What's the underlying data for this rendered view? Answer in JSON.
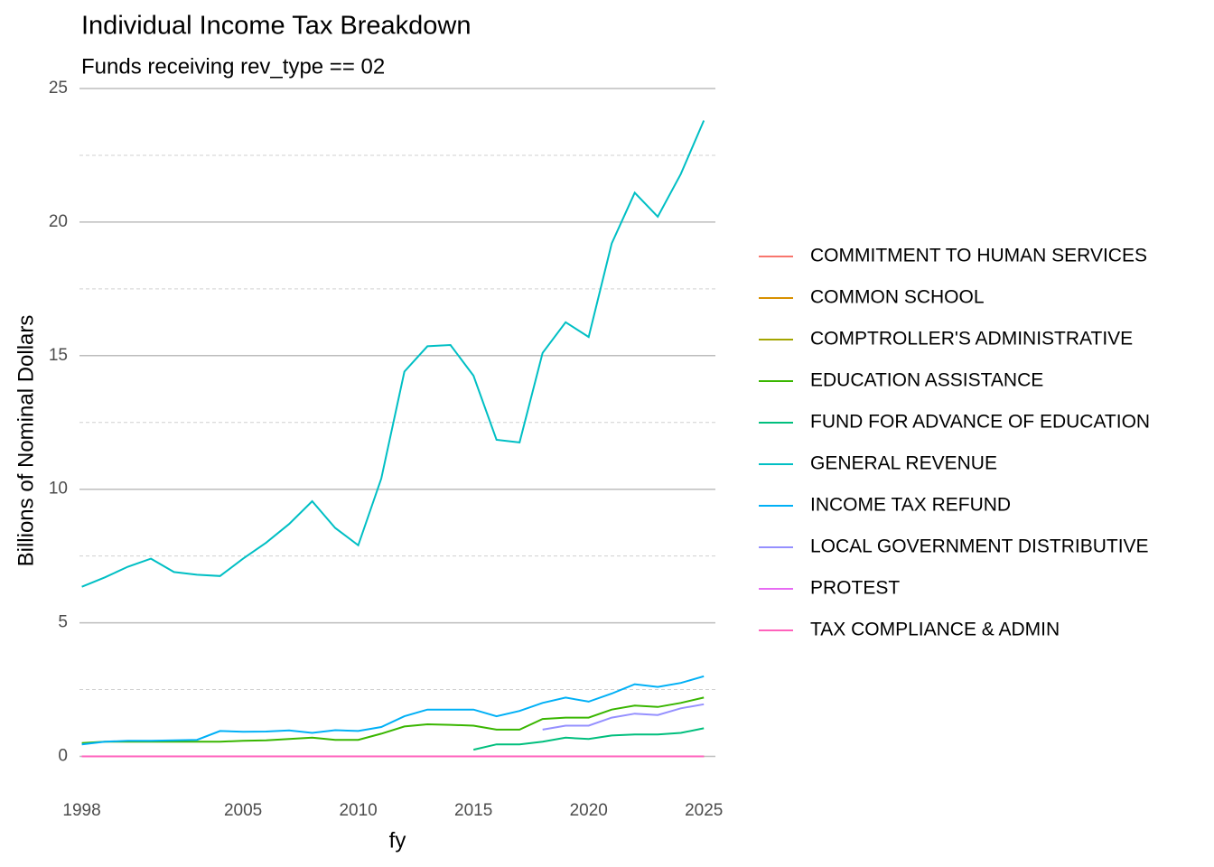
{
  "chart_data": {
    "type": "line",
    "title": "Individual Income Tax  Breakdown",
    "subtitle": "Funds receiving rev_type == 02",
    "x_label": "fy",
    "y_label": "Billions of Nominal Dollars",
    "x": [
      1998,
      1999,
      2000,
      2001,
      2002,
      2003,
      2004,
      2005,
      2006,
      2007,
      2008,
      2009,
      2010,
      2011,
      2012,
      2013,
      2014,
      2015,
      2016,
      2017,
      2018,
      2019,
      2020,
      2021,
      2022,
      2023,
      2024,
      2025
    ],
    "xlim": [
      1997.9,
      2025.5
    ],
    "xticks": [
      1998,
      2005,
      2010,
      2015,
      2020,
      2025
    ],
    "ylim": [
      -1.2,
      25
    ],
    "yticks": [
      0,
      5,
      10,
      15,
      20,
      25
    ],
    "grid": true,
    "legend": "right",
    "series": [
      {
        "name": "COMMITMENT TO HUMAN SERVICES",
        "color": "#F8766D",
        "values": [
          0,
          0,
          0,
          0,
          0,
          0,
          0,
          0,
          0,
          0,
          0,
          0,
          0,
          0,
          0,
          0,
          0,
          0,
          0,
          0,
          0,
          0,
          0,
          0,
          0,
          0,
          0,
          0
        ]
      },
      {
        "name": "COMMON SCHOOL",
        "color": "#D89000",
        "values": [
          0,
          0,
          0,
          0,
          0,
          0,
          0,
          0,
          0,
          0,
          0,
          0,
          0,
          0,
          0,
          0,
          0,
          0,
          0,
          0,
          0,
          0,
          0,
          0,
          0,
          0,
          0,
          0
        ]
      },
      {
        "name": "COMPTROLLER'S ADMINISTRATIVE",
        "color": "#A3A500",
        "values": [
          0,
          0,
          0,
          0,
          0,
          0,
          0,
          0,
          0,
          0,
          0,
          0,
          0,
          0,
          0,
          0,
          0,
          0,
          0,
          0,
          0,
          0,
          0,
          0,
          0,
          0,
          0,
          0
        ]
      },
      {
        "name": "EDUCATION ASSISTANCE",
        "color": "#39B600",
        "values": [
          0.5,
          0.55,
          0.55,
          0.55,
          0.55,
          0.55,
          0.55,
          0.58,
          0.6,
          0.65,
          0.7,
          0.62,
          0.62,
          0.85,
          1.12,
          1.2,
          1.18,
          1.15,
          1.0,
          1.0,
          1.4,
          1.45,
          1.45,
          1.75,
          1.9,
          1.85,
          2.0,
          2.2
        ]
      },
      {
        "name": "FUND FOR ADVANCE OF EDUCATION",
        "color": "#00BF7D",
        "values": [
          null,
          null,
          null,
          null,
          null,
          null,
          null,
          null,
          null,
          null,
          null,
          null,
          null,
          null,
          null,
          null,
          null,
          0.25,
          0.45,
          0.45,
          0.55,
          0.7,
          0.65,
          0.78,
          0.82,
          0.82,
          0.88,
          1.05
        ]
      },
      {
        "name": "GENERAL REVENUE",
        "color": "#00BFC4",
        "values": [
          6.35,
          6.7,
          7.1,
          7.4,
          6.9,
          6.8,
          6.75,
          7.4,
          8.0,
          8.7,
          9.55,
          8.55,
          7.9,
          10.4,
          14.4,
          15.35,
          15.4,
          14.25,
          11.85,
          11.75,
          15.1,
          16.25,
          15.7,
          19.2,
          21.1,
          20.2,
          21.8,
          23.8
        ]
      },
      {
        "name": "INCOME TAX REFUND",
        "color": "#00B0F6",
        "values": [
          0.45,
          0.55,
          0.58,
          0.58,
          0.6,
          0.62,
          0.95,
          0.92,
          0.93,
          0.97,
          0.88,
          0.98,
          0.95,
          1.1,
          1.5,
          1.75,
          1.75,
          1.75,
          1.5,
          1.7,
          2.0,
          2.2,
          2.05,
          2.35,
          2.7,
          2.6,
          2.75,
          3.0
        ]
      },
      {
        "name": "LOCAL GOVERNMENT DISTRIBUTIVE",
        "color": "#9590FF",
        "values": [
          null,
          null,
          null,
          null,
          null,
          null,
          null,
          null,
          null,
          null,
          null,
          null,
          null,
          null,
          null,
          null,
          null,
          null,
          null,
          null,
          1.0,
          1.15,
          1.15,
          1.45,
          1.6,
          1.55,
          1.8,
          1.95
        ]
      },
      {
        "name": "PROTEST",
        "color": "#E76BF3",
        "values": [
          0,
          0,
          0,
          0,
          0,
          0,
          0,
          0,
          0,
          0,
          0,
          0,
          0,
          0,
          0,
          0,
          0,
          0,
          0,
          0,
          0,
          0,
          0,
          0,
          0,
          0,
          0,
          0
        ]
      },
      {
        "name": "TAX COMPLIANCE & ADMIN",
        "color": "#FF62BC",
        "values": [
          0,
          0,
          0,
          0,
          0,
          0,
          0,
          0,
          0,
          0,
          0,
          0,
          0,
          0,
          0,
          0,
          0,
          0,
          0,
          0,
          0,
          0,
          0,
          0,
          0,
          0,
          0,
          0
        ]
      }
    ]
  }
}
